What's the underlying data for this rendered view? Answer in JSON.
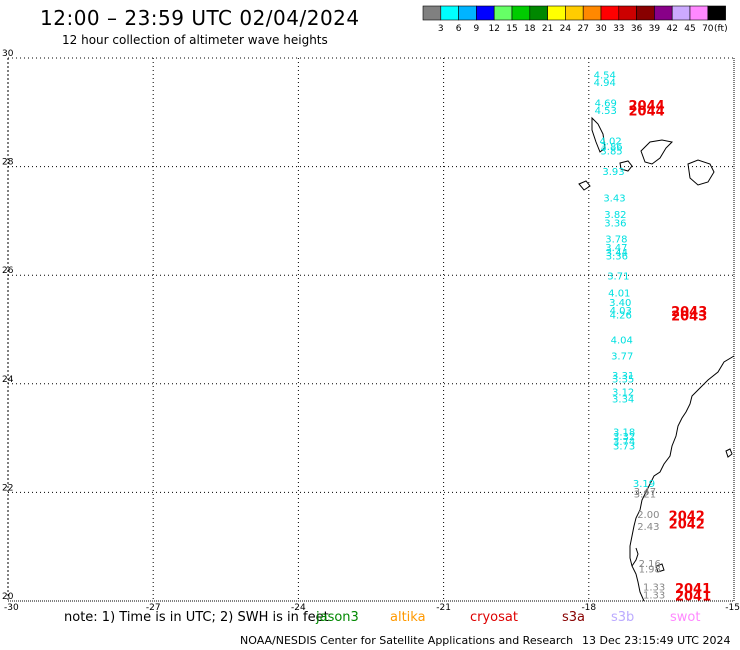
{
  "header": {
    "title": "12:00 – 23:59 UTC 02/04/2024",
    "subtitle": "12 hour collection of altimeter wave heights"
  },
  "color_scale": {
    "unit": "(ft)",
    "bins": [
      {
        "color": "#808080",
        "label": "3"
      },
      {
        "color": "#00ffff",
        "label": "6"
      },
      {
        "color": "#00b4ff",
        "label": "9"
      },
      {
        "color": "#0000ff",
        "label": "12"
      },
      {
        "color": "#66ff66",
        "label": "15"
      },
      {
        "color": "#00cc00",
        "label": "18"
      },
      {
        "color": "#008800",
        "label": "21"
      },
      {
        "color": "#ffff00",
        "label": "24"
      },
      {
        "color": "#ffcc00",
        "label": "27"
      },
      {
        "color": "#ff8800",
        "label": "30"
      },
      {
        "color": "#ff0000",
        "label": "33"
      },
      {
        "color": "#cc0000",
        "label": "36"
      },
      {
        "color": "#880000",
        "label": "39"
      },
      {
        "color": "#880088",
        "label": "42"
      },
      {
        "color": "#ccaaff",
        "label": "45"
      },
      {
        "color": "#ff88ff",
        "label": "70"
      },
      {
        "color": "#000000",
        "label": ""
      }
    ]
  },
  "map": {
    "lon_range": [
      -30,
      -15
    ],
    "lat_range": [
      20,
      30
    ],
    "lon_ticks": [
      "-30",
      "-27",
      "-24",
      "-21",
      "-18",
      "-15"
    ],
    "lat_ticks": [
      "30",
      "28",
      "26",
      "24",
      "22",
      "20"
    ],
    "lat_tick_values": [
      30,
      28,
      26,
      24,
      22,
      20
    ],
    "lon_tick_values": [
      -30,
      -27,
      -24,
      -21,
      -18,
      -15
    ]
  },
  "wave_heights": [
    {
      "text": "4.54",
      "lon": -17.9,
      "lat": 29.7,
      "sat": "cyan"
    },
    {
      "text": "4.94",
      "lon": -17.9,
      "lat": 29.56,
      "sat": "cyan"
    },
    {
      "text": "4.69",
      "lon": -17.88,
      "lat": 29.18,
      "sat": "cyan"
    },
    {
      "text": "4.53",
      "lon": -17.88,
      "lat": 29.04,
      "sat": "cyan"
    },
    {
      "text": "4.02",
      "lon": -17.78,
      "lat": 28.48,
      "sat": "cyan"
    },
    {
      "text": "3.86",
      "lon": -17.76,
      "lat": 28.38,
      "sat": "cyan"
    },
    {
      "text": "3.85",
      "lon": -17.76,
      "lat": 28.3,
      "sat": "cyan"
    },
    {
      "text": "3.93",
      "lon": -17.72,
      "lat": 27.92,
      "sat": "cyan"
    },
    {
      "text": "3.43",
      "lon": -17.7,
      "lat": 27.43,
      "sat": "cyan"
    },
    {
      "text": "3.82",
      "lon": -17.68,
      "lat": 27.13,
      "sat": "cyan"
    },
    {
      "text": "3.36",
      "lon": -17.68,
      "lat": 26.97,
      "sat": "cyan"
    },
    {
      "text": "3.78",
      "lon": -17.66,
      "lat": 26.68,
      "sat": "cyan"
    },
    {
      "text": "3.47",
      "lon": -17.66,
      "lat": 26.52,
      "sat": "cyan"
    },
    {
      "text": "3.44",
      "lon": -17.65,
      "lat": 26.43,
      "sat": "cyan"
    },
    {
      "text": "3.36",
      "lon": -17.65,
      "lat": 26.36,
      "sat": "cyan"
    },
    {
      "text": "3.71",
      "lon": -17.62,
      "lat": 25.99,
      "sat": "cyan"
    },
    {
      "text": "4.01",
      "lon": -17.6,
      "lat": 25.68,
      "sat": "cyan"
    },
    {
      "text": "3.40",
      "lon": -17.58,
      "lat": 25.51,
      "sat": "cyan"
    },
    {
      "text": "4.03",
      "lon": -17.57,
      "lat": 25.36,
      "sat": "cyan"
    },
    {
      "text": "4.26",
      "lon": -17.57,
      "lat": 25.28,
      "sat": "cyan"
    },
    {
      "text": "4.04",
      "lon": -17.55,
      "lat": 24.82,
      "sat": "cyan"
    },
    {
      "text": "3.77",
      "lon": -17.54,
      "lat": 24.52,
      "sat": "cyan"
    },
    {
      "text": "3.31",
      "lon": -17.52,
      "lat": 24.16,
      "sat": "cyan"
    },
    {
      "text": "3.35",
      "lon": -17.52,
      "lat": 24.1,
      "sat": "cyan"
    },
    {
      "text": "3.12",
      "lon": -17.52,
      "lat": 23.86,
      "sat": "cyan"
    },
    {
      "text": "3.34",
      "lon": -17.52,
      "lat": 23.73,
      "sat": "cyan"
    },
    {
      "text": "3.18",
      "lon": -17.5,
      "lat": 23.12,
      "sat": "cyan"
    },
    {
      "text": "3.32",
      "lon": -17.5,
      "lat": 23.04,
      "sat": "cyan"
    },
    {
      "text": "3.74",
      "lon": -17.5,
      "lat": 22.95,
      "sat": "cyan"
    },
    {
      "text": "3.73",
      "lon": -17.5,
      "lat": 22.86,
      "sat": "cyan"
    },
    {
      "text": "3.19",
      "lon": -17.09,
      "lat": 22.17,
      "sat": "cyan"
    },
    {
      "text": "3.47",
      "lon": -17.07,
      "lat": 22.03,
      "sat": "gray"
    },
    {
      "text": "3.21",
      "lon": -17.07,
      "lat": 21.98,
      "sat": "gray"
    },
    {
      "text": "2.00",
      "lon": -17.0,
      "lat": 21.6,
      "sat": "gray"
    },
    {
      "text": "2.43",
      "lon": -17.0,
      "lat": 21.38,
      "sat": "gray"
    },
    {
      "text": "2.16",
      "lon": -16.97,
      "lat": 20.7,
      "sat": "gray"
    },
    {
      "text": "1.98",
      "lon": -16.97,
      "lat": 20.6,
      "sat": "gray"
    },
    {
      "text": "1.33",
      "lon": -16.88,
      "lat": 20.27,
      "sat": "gray"
    },
    {
      "text": "1.33",
      "lon": -16.88,
      "lat": 20.12,
      "sat": "gray"
    }
  ],
  "sat_colors": {
    "cyan": "#00e0e0",
    "gray": "#888888",
    "pass": "#ee0000"
  },
  "pass_labels": [
    {
      "text": "2044",
      "lon": -17.18,
      "lat": 29.13
    },
    {
      "text": "2044",
      "lon": -17.18,
      "lat": 29.03
    },
    {
      "text": "2043",
      "lon": -16.3,
      "lat": 25.34
    },
    {
      "text": "2043",
      "lon": -16.3,
      "lat": 25.26
    },
    {
      "text": "2042",
      "lon": -16.35,
      "lat": 21.57
    },
    {
      "text": "2042",
      "lon": -16.35,
      "lat": 21.43
    },
    {
      "text": "2041",
      "lon": -16.22,
      "lat": 20.24
    },
    {
      "text": "2041",
      "lon": -16.22,
      "lat": 20.1
    }
  ],
  "footer": {
    "note": "note: 1) Time is in UTC; 2) SWH is in feet",
    "legend": [
      {
        "name": "jason3",
        "color": "#008800"
      },
      {
        "name": "altika",
        "color": "#ff9900"
      },
      {
        "name": "cryosat",
        "color": "#dd0000"
      },
      {
        "name": "s3a",
        "color": "#880000"
      },
      {
        "name": "s3b",
        "color": "#bbaaff"
      },
      {
        "name": "swot",
        "color": "#ff88ff"
      }
    ],
    "credit": "NOAA/NESDIS Center for Satellite Applications and Research",
    "timestamp": "13 Dec 23:15:49 UTC 2024"
  }
}
